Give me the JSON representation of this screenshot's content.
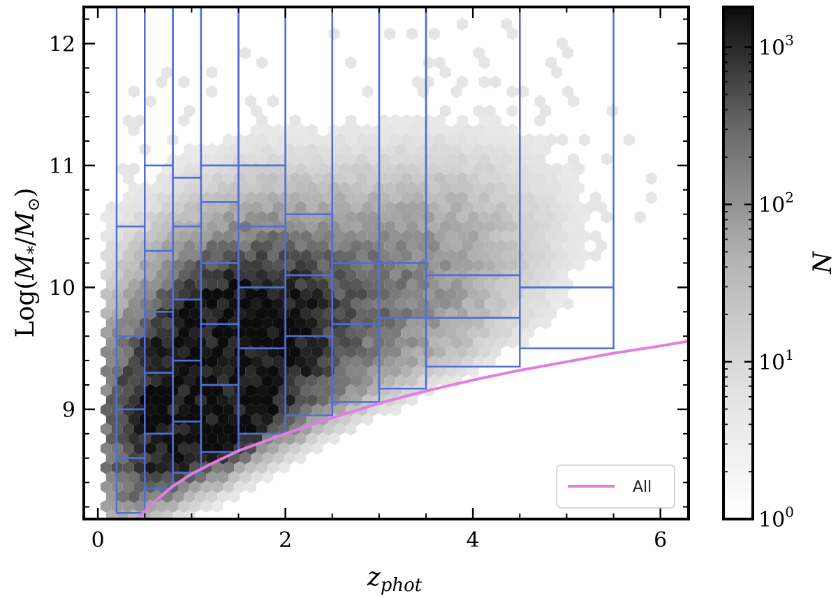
{
  "chart_data": {
    "type": "heatmap",
    "subtype": "hexbin-with-bin-overlay",
    "title": "",
    "xlabel_main": "z",
    "xlabel_sub": "phot",
    "ylabel_prefix": "Log(",
    "ylabel_m": "M",
    "ylabel_star": "*",
    "ylabel_slash": "/",
    "ylabel_sun": "⊙",
    "ylabel_suffix": ")",
    "xlim": [
      -0.15,
      6.3
    ],
    "ylim": [
      8.1,
      12.3
    ],
    "x_ticks": [
      {
        "value": 0,
        "label": "0"
      },
      {
        "value": 2,
        "label": "2"
      },
      {
        "value": 4,
        "label": "4"
      },
      {
        "value": 6,
        "label": "6"
      }
    ],
    "y_ticks": [
      {
        "value": 9,
        "label": "9"
      },
      {
        "value": 10,
        "label": "10"
      },
      {
        "value": 11,
        "label": "11"
      },
      {
        "value": 12,
        "label": "12"
      }
    ],
    "density_colormap": "greys",
    "colorbar": {
      "label": "N",
      "scale": "log",
      "range": [
        1,
        1800
      ],
      "ticks": [
        {
          "value": 1,
          "base": "10",
          "exp": "0"
        },
        {
          "value": 10,
          "base": "10",
          "exp": "1"
        },
        {
          "value": 100,
          "base": "10",
          "exp": "2"
        },
        {
          "value": 1000,
          "base": "10",
          "exp": "3"
        }
      ]
    },
    "bin_color": "#4f6fd8",
    "bins": [
      {
        "z": [
          0.2,
          0.5
        ],
        "mass_edges": [
          8.15,
          8.6,
          9.0,
          9.6,
          10.5,
          12.3
        ]
      },
      {
        "z": [
          0.5,
          0.8
        ],
        "mass_edges": [
          8.35,
          8.8,
          9.3,
          9.8,
          10.3,
          11.0,
          12.3
        ]
      },
      {
        "z": [
          0.8,
          1.1
        ],
        "mass_edges": [
          8.48,
          8.9,
          9.4,
          9.9,
          10.5,
          10.9,
          12.3
        ]
      },
      {
        "z": [
          1.1,
          1.5
        ],
        "mass_edges": [
          8.65,
          9.2,
          9.7,
          10.2,
          10.7,
          11.0,
          12.3
        ]
      },
      {
        "z": [
          1.5,
          2.0
        ],
        "mass_edges": [
          8.8,
          9.5,
          10.0,
          10.5,
          11.0,
          12.3
        ]
      },
      {
        "z": [
          2.0,
          2.5
        ],
        "mass_edges": [
          8.95,
          9.6,
          10.1,
          10.6,
          12.3
        ]
      },
      {
        "z": [
          2.5,
          3.0
        ],
        "mass_edges": [
          9.06,
          9.7,
          10.2,
          12.3
        ]
      },
      {
        "z": [
          3.0,
          3.5
        ],
        "mass_edges": [
          9.17,
          9.75,
          10.2,
          12.3
        ]
      },
      {
        "z": [
          3.5,
          4.5
        ],
        "mass_edges": [
          9.35,
          9.75,
          10.1,
          12.3
        ]
      },
      {
        "z": [
          4.5,
          5.5
        ],
        "mass_edges": [
          9.5,
          10.0,
          12.3
        ]
      }
    ],
    "series": [
      {
        "name": "All",
        "color": "#e07fe0",
        "x": [
          0.4,
          0.6,
          0.8,
          1.0,
          1.2,
          1.5,
          2.0,
          2.5,
          3.0,
          3.5,
          4.0,
          4.5,
          5.0,
          5.5,
          6.0,
          6.3
        ],
        "y": [
          8.09,
          8.24,
          8.37,
          8.47,
          8.55,
          8.66,
          8.8,
          8.93,
          9.05,
          9.15,
          9.24,
          9.32,
          9.39,
          9.46,
          9.52,
          9.56
        ]
      }
    ],
    "legend": {
      "position": "bottom-right",
      "entries": [
        "All"
      ]
    }
  }
}
